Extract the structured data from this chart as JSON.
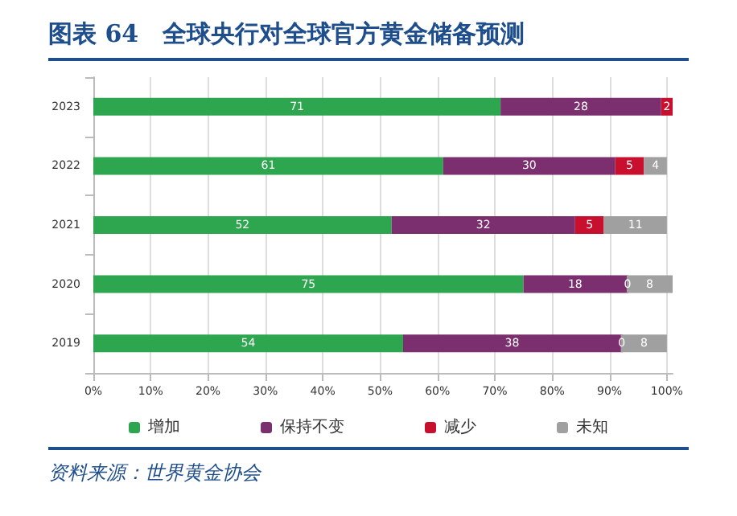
{
  "chart_data": {
    "type": "bar",
    "orientation": "horizontal",
    "stacked": true,
    "title": "图表 64　全球央行对全球官方黄金储备预测",
    "categories": [
      "2023",
      "2022",
      "2021",
      "2020",
      "2019"
    ],
    "series": [
      {
        "name": "增加",
        "color": "#2ea64f",
        "values": [
          71,
          61,
          52,
          75,
          54
        ],
        "value_labels": [
          "71",
          "61",
          "52",
          "75",
          "54"
        ]
      },
      {
        "name": "保持不变",
        "color": "#7b2f6f",
        "values": [
          28,
          30,
          32,
          18,
          38
        ],
        "value_labels": [
          "28",
          "30",
          "32",
          "18",
          "38"
        ]
      },
      {
        "name": "减少",
        "color": "#c8102e",
        "values": [
          2,
          5,
          5,
          0,
          0
        ],
        "value_labels": [
          "2",
          "5",
          "5",
          "0",
          "0"
        ]
      },
      {
        "name": "未知",
        "color": "#a0a0a0",
        "values": [
          null,
          4,
          11,
          8,
          8
        ],
        "value_labels": [
          null,
          "4",
          "11",
          "8",
          "8"
        ]
      }
    ],
    "xlim": [
      0,
      101
    ],
    "xticks": [
      {
        "value": 0,
        "label": "0%"
      },
      {
        "value": 10,
        "label": "10%"
      },
      {
        "value": 20,
        "label": "20%"
      },
      {
        "value": 30,
        "label": "30%"
      },
      {
        "value": 40,
        "label": "40%"
      },
      {
        "value": 50,
        "label": "50%"
      },
      {
        "value": 60,
        "label": "60%"
      },
      {
        "value": 70,
        "label": "70%"
      },
      {
        "value": 80,
        "label": "80%"
      },
      {
        "value": 90,
        "label": "90%"
      },
      {
        "value": 100,
        "label": "100%"
      }
    ],
    "grid": "x",
    "legend": "bottom",
    "annotations": [
      "资料来源：世界黄金协会"
    ]
  }
}
